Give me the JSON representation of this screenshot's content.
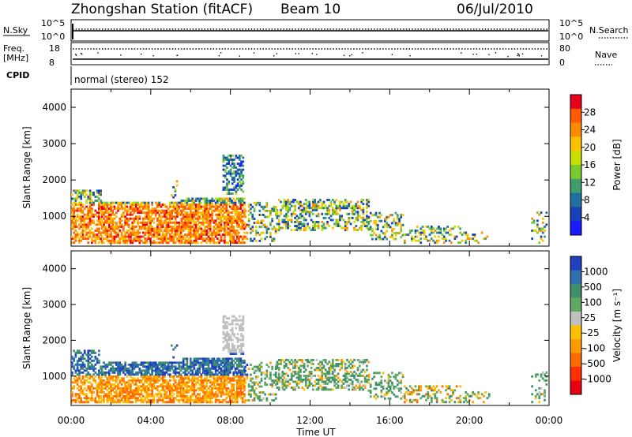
{
  "header": {
    "station": "Zhongshan Station (fitACF)",
    "beam": "Beam 10",
    "date": "06/Jul/2010"
  },
  "noise_panel": {
    "left_label": "N.Sky",
    "left_ticks": [
      "10^5",
      "10^0"
    ],
    "right_ticks": [
      "10^5",
      "10^0"
    ],
    "right_label": "N.Search"
  },
  "freq_panel": {
    "left_label_1": "Freq.",
    "left_label_2": "[MHz]",
    "left_ticks": [
      "18",
      "8"
    ],
    "right_ticks": [
      "80",
      "0"
    ],
    "right_label": "Nave"
  },
  "cpid": {
    "label": "CPID",
    "mode": "normal (stereo) 152"
  },
  "chart_data": [
    {
      "type": "heatmap",
      "title": "",
      "ylabel": "Slant Range [km]",
      "xlabel": "",
      "yticks": [
        "4000",
        "3000",
        "2000",
        "1000"
      ],
      "ylim": [
        180,
        4500
      ],
      "xlim": [
        0,
        24
      ],
      "colorbar": {
        "label": "Power [dB]",
        "tick_labels": [
          "28",
          "24",
          "20",
          "16",
          "12",
          "8",
          "4"
        ],
        "colors": [
          "#e6001a",
          "#ff5a00",
          "#ff8c00",
          "#ffc000",
          "#c8e000",
          "#7acb2e",
          "#3f9d6e",
          "#1f6fa0",
          "#1840b8",
          "#1a1aff"
        ]
      }
    },
    {
      "type": "heatmap",
      "title": "",
      "ylabel": "Slant Range [km]",
      "xlabel": "Time UT",
      "yticks": [
        "4000",
        "3000",
        "2000",
        "1000"
      ],
      "xticks": [
        "00:00",
        "04:00",
        "08:00",
        "12:00",
        "16:00",
        "20:00",
        "00:00"
      ],
      "ylim": [
        180,
        4500
      ],
      "xlim": [
        0,
        24
      ],
      "colorbar": {
        "label": "Velocity [m s⁻¹]",
        "tick_labels": [
          "1000",
          "500",
          "100",
          "25",
          "-25",
          "-100",
          "-500",
          "-1000"
        ],
        "colors": [
          "#2040c0",
          "#2f6fb0",
          "#3f8f6a",
          "#5fa860",
          "#c0c0c0",
          "#ffc000",
          "#ff9a00",
          "#ff6a00",
          "#ff3000",
          "#e60010"
        ]
      }
    }
  ]
}
